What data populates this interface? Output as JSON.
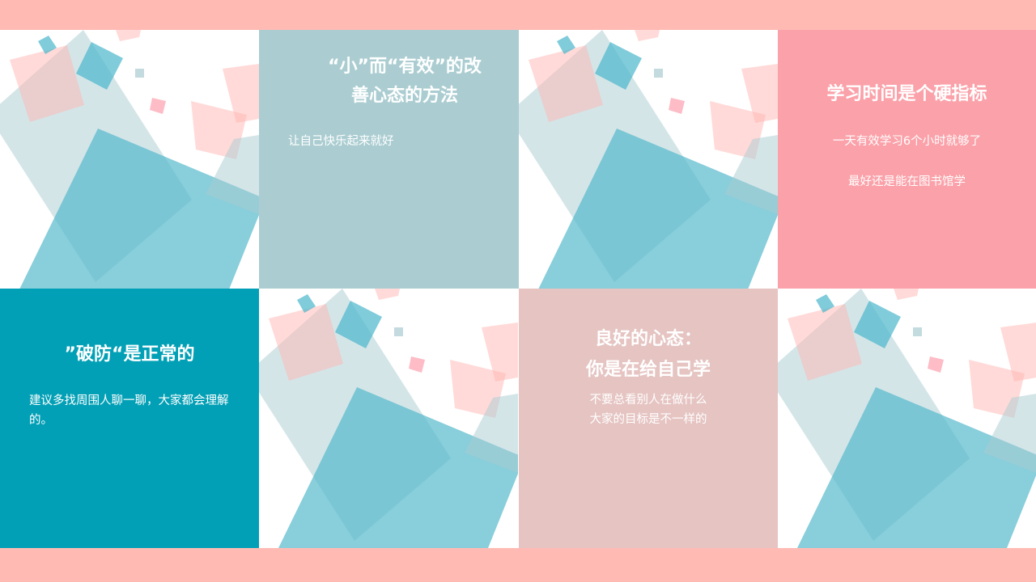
{
  "colors": {
    "band": "#ffbab4",
    "teal_card": "#abcdd1",
    "pink_card": "#fba1a9",
    "cyan_card": "#02a0b6",
    "rose_card": "#e5c4c2"
  },
  "cards": {
    "method": {
      "title_line1": "“小”而“有效”的改",
      "title_line2": "善心态的方法",
      "body": "让自己快乐起来就好"
    },
    "study_time": {
      "title": "学习时间是个硬指标",
      "line1": "一天有效学习6个小时就够了",
      "line2": "最好还是能在图书馆学"
    },
    "breakdown": {
      "title": "”破防“是正常的",
      "body": "建议多找周围人聊一聊，大家都会理解的。"
    },
    "mindset": {
      "title_line1": "良好的心态：",
      "title_line2": "你是在给自己学",
      "line1": "不要总看别人在做什么",
      "line2": "大家的目标是不一样的"
    }
  }
}
